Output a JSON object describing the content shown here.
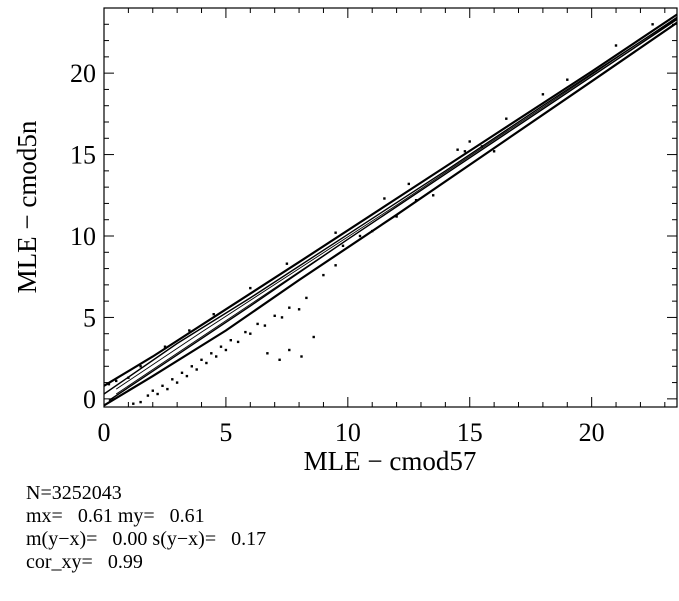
{
  "chart_data": {
    "type": "scatter",
    "title": "",
    "xlabel": "MLE  − cmod57",
    "ylabel": "MLE  − cmod5n",
    "xlim": [
      0,
      23.5
    ],
    "ylim": [
      -0.5,
      24
    ],
    "xticks": [
      0,
      5,
      10,
      15,
      20
    ],
    "yticks": [
      0,
      5,
      10,
      15,
      20
    ],
    "xtick_labels": [
      "0",
      "5",
      "10",
      "15",
      "20"
    ],
    "ytick_labels": [
      "0",
      "5",
      "10",
      "15",
      "20"
    ],
    "grid": false,
    "legend": "none",
    "contour_lines": [
      {
        "level": "outer",
        "points": [
          [
            0,
            0.8
          ],
          [
            2,
            2.6
          ],
          [
            5,
            5.5
          ],
          [
            8,
            8.4
          ],
          [
            12,
            12.3
          ],
          [
            16,
            16.2
          ],
          [
            20,
            20.1
          ],
          [
            23.5,
            23.6
          ]
        ]
      },
      {
        "level": "outer",
        "points": [
          [
            0,
            -0.4
          ],
          [
            2,
            1.4
          ],
          [
            5,
            4.2
          ],
          [
            8,
            7.3
          ],
          [
            12,
            11.3
          ],
          [
            16,
            15.4
          ],
          [
            20,
            19.5
          ],
          [
            23.5,
            23.1
          ]
        ]
      },
      {
        "level": "middle",
        "points": [
          [
            0,
            0.3
          ],
          [
            3,
            3.4
          ],
          [
            6,
            6.2
          ],
          [
            10,
            10.1
          ],
          [
            14,
            14.0
          ],
          [
            18,
            18.0
          ],
          [
            23.5,
            23.4
          ]
        ]
      },
      {
        "level": "middle",
        "points": [
          [
            0.2,
            -0.1
          ],
          [
            3,
            2.7
          ],
          [
            6,
            5.7
          ],
          [
            10,
            9.8
          ],
          [
            14,
            13.8
          ],
          [
            18,
            17.8
          ],
          [
            23.5,
            23.3
          ]
        ]
      },
      {
        "level": "inner",
        "points": [
          [
            0.5,
            0.6
          ],
          [
            4,
            4.1
          ],
          [
            8,
            8.0
          ],
          [
            12,
            11.9
          ],
          [
            16,
            15.9
          ],
          [
            20,
            19.9
          ],
          [
            23.5,
            23.45
          ]
        ]
      },
      {
        "level": "inner",
        "points": [
          [
            0.5,
            0.3
          ],
          [
            4,
            3.8
          ],
          [
            8,
            7.8
          ],
          [
            12,
            11.8
          ],
          [
            16,
            15.8
          ],
          [
            20,
            19.8
          ],
          [
            23.5,
            23.35
          ]
        ]
      }
    ],
    "outlier_points": [
      [
        1.2,
        -0.3
      ],
      [
        1.5,
        -0.2
      ],
      [
        1.8,
        0.2
      ],
      [
        2.0,
        0.5
      ],
      [
        2.2,
        0.3
      ],
      [
        2.4,
        0.8
      ],
      [
        2.6,
        0.6
      ],
      [
        2.8,
        1.2
      ],
      [
        3.0,
        1.0
      ],
      [
        3.2,
        1.6
      ],
      [
        3.4,
        1.4
      ],
      [
        3.6,
        2.0
      ],
      [
        3.8,
        1.8
      ],
      [
        4.0,
        2.4
      ],
      [
        4.2,
        2.2
      ],
      [
        4.4,
        2.8
      ],
      [
        4.6,
        2.6
      ],
      [
        4.8,
        3.2
      ],
      [
        5.0,
        3.0
      ],
      [
        5.2,
        3.6
      ],
      [
        5.5,
        3.5
      ],
      [
        5.8,
        4.1
      ],
      [
        6.0,
        4.0
      ],
      [
        6.3,
        4.6
      ],
      [
        6.6,
        4.5
      ],
      [
        7.0,
        5.1
      ],
      [
        7.3,
        5.0
      ],
      [
        7.6,
        5.6
      ],
      [
        8.0,
        5.5
      ],
      [
        8.3,
        6.2
      ],
      [
        8.6,
        3.8
      ],
      [
        8.1,
        2.6
      ],
      [
        7.6,
        3.0
      ],
      [
        7.2,
        2.4
      ],
      [
        6.7,
        2.8
      ],
      [
        9.0,
        7.6
      ],
      [
        9.5,
        8.2
      ],
      [
        9.8,
        9.4
      ],
      [
        10.5,
        10.0
      ],
      [
        11.0,
        10.3
      ],
      [
        12.0,
        11.2
      ],
      [
        12.8,
        12.2
      ],
      [
        13.5,
        12.5
      ],
      [
        14.8,
        15.2
      ],
      [
        15.5,
        15.5
      ],
      [
        16.0,
        15.2
      ],
      [
        1.0,
        1.3
      ],
      [
        1.5,
        2.0
      ],
      [
        2.5,
        3.2
      ],
      [
        3.5,
        4.2
      ],
      [
        4.5,
        5.2
      ],
      [
        6.0,
        6.8
      ],
      [
        7.5,
        8.3
      ],
      [
        9.5,
        10.2
      ],
      [
        11.5,
        12.3
      ],
      [
        12.5,
        13.2
      ],
      [
        14.5,
        15.3
      ],
      [
        15.0,
        15.8
      ],
      [
        16.5,
        17.2
      ],
      [
        18.0,
        18.7
      ],
      [
        19.0,
        19.6
      ],
      [
        21.0,
        21.7
      ],
      [
        22.5,
        23.0
      ],
      [
        0.2,
        0.9
      ],
      [
        0.5,
        1.1
      ]
    ]
  },
  "stats": {
    "n": "N=3252043",
    "means": "mx=   0.61 my=   0.61",
    "diff": "m(y−x)=   0.00 s(y−x)=   0.17",
    "cor": "cor_xy=   0.99"
  }
}
